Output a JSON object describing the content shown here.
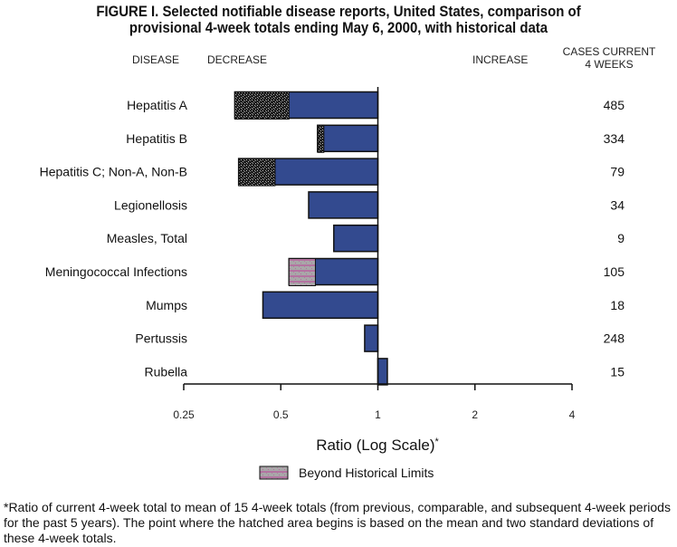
{
  "chart_data": {
    "type": "bar",
    "orientation": "horizontal",
    "title_line1": "FIGURE I. Selected notifiable disease reports, United States, comparison of",
    "title_line2": "provisional 4-week totals ending May 6, 2000, with historical data",
    "headers": {
      "disease": "DISEASE",
      "decrease": "DECREASE",
      "increase": "INCREASE",
      "cases_line1": "CASES CURRENT",
      "cases_line2": "4 WEEKS"
    },
    "xlabel": "Ratio (Log Scale)",
    "xlabel_mark": "*",
    "xscale": "log2",
    "xlim": [
      0.25,
      4
    ],
    "xticks": [
      "0.25",
      "0.5",
      "1",
      "2",
      "4"
    ],
    "xtick_values": [
      0.25,
      0.5,
      1,
      2,
      4
    ],
    "categories": [
      "Hepatitis A",
      "Hepatitis B",
      "Hepatitis C; Non-A, Non-B",
      "Legionellosis",
      "Measles, Total",
      "Meningococcal Infections",
      "Mumps",
      "Pertussis",
      "Rubella"
    ],
    "ratios": [
      0.36,
      0.65,
      0.37,
      0.61,
      0.73,
      0.53,
      0.44,
      0.91,
      1.07
    ],
    "beyond_limits_from": [
      0.53,
      0.68,
      0.48,
      null,
      null,
      0.64,
      null,
      null,
      null
    ],
    "hatch_style": [
      "dark",
      "dark",
      "dark",
      null,
      null,
      "pink",
      null,
      null,
      null
    ],
    "cases": [
      "485",
      "334",
      "79",
      "34",
      "9",
      "105",
      "18",
      "248",
      "15"
    ],
    "legend": {
      "label": "Beyond Historical Limits",
      "placement": "bottom-center"
    },
    "colors": {
      "bar": "#334a8f",
      "hatch_dark": "#1a1a1a",
      "hatch_gray": "#a8a8a8",
      "hatch_pink": "#c0409a"
    },
    "footnote": "*Ratio of current 4-week total to mean of 15 4-week totals (from previous, comparable, and subsequent 4-week periods for the past 5 years). The point where the hatched area begins is based on the mean and two standard deviations of these 4-week totals."
  }
}
